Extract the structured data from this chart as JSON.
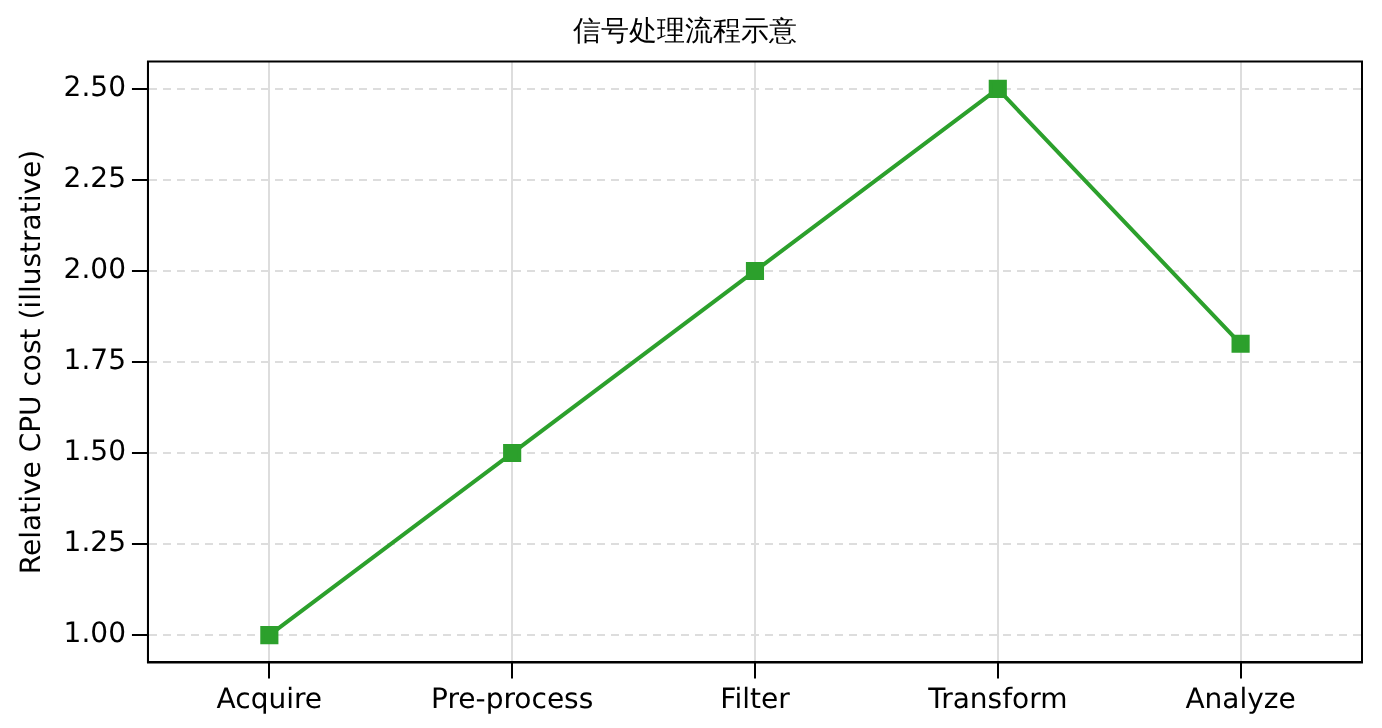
{
  "chart_data": {
    "type": "line",
    "title": "信号处理流程示意",
    "ylabel": "Relative CPU cost (illustrative)",
    "categories": [
      "Acquire",
      "Pre-process",
      "Filter",
      "Transform",
      "Analyze"
    ],
    "series": [
      {
        "color": "#2ca02c",
        "values": [
          1.0,
          1.5,
          2.0,
          2.5,
          1.8
        ]
      }
    ],
    "ylim": [
      0.925,
      2.575
    ],
    "yticks": [
      {
        "value": 1,
        "label": "1.00"
      },
      {
        "value": 1.25,
        "label": "1.25"
      },
      {
        "value": 1.5,
        "label": "1.50"
      },
      {
        "value": 1.75,
        "label": "1.75"
      },
      {
        "value": 2,
        "label": "2.00"
      },
      {
        "value": 2.25,
        "label": "2.25"
      },
      {
        "value": 2.5,
        "label": "2.50"
      }
    ],
    "grid": true,
    "marker": "square",
    "line_style": "solid",
    "legend": false
  }
}
